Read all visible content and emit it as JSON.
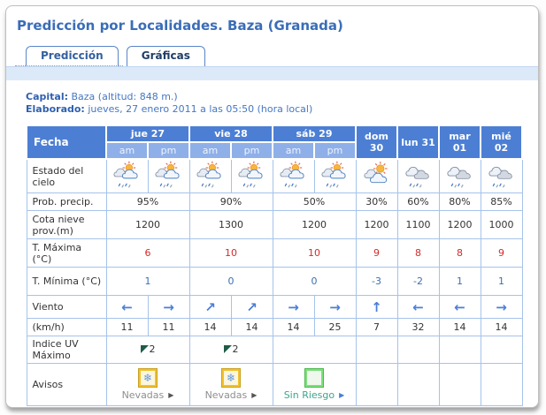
{
  "page": {
    "title": "Predicción por Localidades. Baza (Granada)"
  },
  "tabs": [
    {
      "label": "Predicción",
      "active": true
    },
    {
      "label": "Gráficas",
      "active": false
    }
  ],
  "meta": {
    "capital_label": "Capital:",
    "capital_value": " Baza (altitud: 848 m.)",
    "elaborado_label": "Elaborado:",
    "elaborado_value": " jueves, 27 enero 2011 a las 05:50 (hora local)"
  },
  "colors": {
    "header_blue": "#4c7fd4",
    "ampm_blue": "#8fafe8",
    "border_blue": "#a6c3ea",
    "temp_max_red": "#d42a2a",
    "temp_min_blue": "#3d6fb0",
    "wind_blue": "#4a7ed6",
    "warning_yellow": "#f2c12e",
    "no_risk_green": "#7de07d",
    "uv_green": "#1e5c45"
  },
  "table": {
    "fecha_header": "Fecha",
    "am_label": "am",
    "pm_label": "pm",
    "days": [
      {
        "label": "jue 27",
        "halfday": true
      },
      {
        "label": "vie 28",
        "halfday": true
      },
      {
        "label": "sáb 29",
        "halfday": true
      },
      {
        "label": "dom 30",
        "halfday": false
      },
      {
        "label": "lun 31",
        "halfday": false
      },
      {
        "label": "mar 01",
        "halfday": false
      },
      {
        "label": "mié 02",
        "halfday": false
      }
    ],
    "rows": [
      {
        "id": "estado",
        "label": "Estado del cielo",
        "type": "sky",
        "icons": [
          "sun-cloud-sleet",
          "sun-cloud-sleet",
          "sun-cloud-sleet",
          "sun-cloud-sleet",
          "sun-cloud-sleet",
          "sun-cloud-sleet",
          "sun-cloud",
          "cloud-sleet",
          "cloud-sleet",
          "cloud-sleet"
        ]
      },
      {
        "id": "prob",
        "label": "Prob. precip.",
        "type": "text",
        "values": [
          "95%",
          "90%",
          "50%",
          "30%",
          "60%",
          "80%",
          "85%"
        ],
        "perday": true
      },
      {
        "id": "cota",
        "label": "Cota nieve prov.(m)",
        "type": "text",
        "values": [
          "1200",
          "1300",
          "1200",
          "1200",
          "1100",
          "1200",
          "1000"
        ],
        "perday": true
      },
      {
        "id": "tmax",
        "label": "T. Máxima (°C)",
        "type": "text",
        "cls": "val-red",
        "values": [
          "6",
          "10",
          "10",
          "9",
          "8",
          "8",
          "9"
        ],
        "perday": true
      },
      {
        "id": "tmin",
        "label": "T. Mínima (°C)",
        "type": "text",
        "cls": "val-blue",
        "values": [
          "1",
          "0",
          "0",
          "-3",
          "-2",
          "1",
          "1"
        ],
        "perday": true
      },
      {
        "id": "viento",
        "label": "Viento",
        "type": "wind",
        "values": [
          "←",
          "→",
          "↗",
          "↗",
          "→",
          "→",
          "↑",
          "←",
          "←",
          "→"
        ]
      },
      {
        "id": "kmh",
        "label": "(km/h)",
        "type": "text",
        "values": [
          "11",
          "11",
          "14",
          "14",
          "14",
          "25",
          "7",
          "32",
          "14",
          "14"
        ],
        "perday": false
      },
      {
        "id": "uv",
        "label": "Indice UV Máximo",
        "type": "uv",
        "values": [
          "2",
          "2",
          "",
          "",
          "",
          "",
          ""
        ],
        "perday": true
      },
      {
        "id": "avisos",
        "label": "Avisos",
        "type": "aviso",
        "values": [
          {
            "icon": "snow",
            "text": "Nevadas"
          },
          {
            "icon": "snow",
            "text": "Nevadas"
          },
          {
            "icon": "norisk",
            "text": "Sin Riesgo"
          },
          null,
          null,
          null,
          null
        ]
      }
    ]
  }
}
